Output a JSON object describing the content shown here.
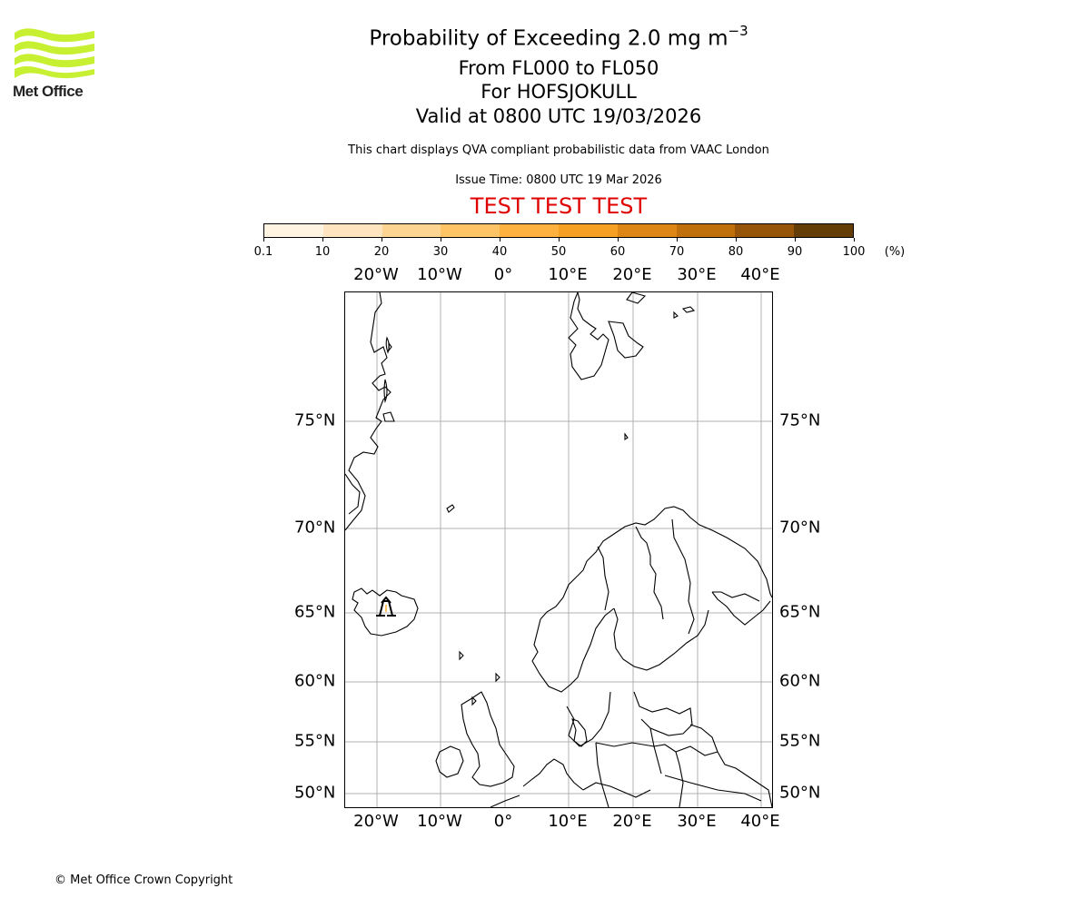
{
  "logo": {
    "text": "Met Office",
    "wave_color": "#c8f032"
  },
  "title": {
    "line1_prefix": "Probability of Exceeding 2.0 mg m",
    "line1_superscript": "−3",
    "line2": "From FL000 to FL050",
    "line3": "For HOFSJOKULL",
    "line4": "Valid at 0800 UTC 19/03/2026"
  },
  "subtitle": {
    "description": "This chart displays QVA compliant probabilistic data from VAAC London",
    "issue_time": "Issue Time: 0800 UTC 19 Mar 2026",
    "test_banner": "TEST TEST TEST",
    "test_color": "#e00000"
  },
  "colorbar": {
    "unit": "(%)",
    "ticks": [
      "0.1",
      "10",
      "20",
      "30",
      "40",
      "50",
      "60",
      "70",
      "80",
      "90",
      "100"
    ],
    "colors": [
      "#fff4e2",
      "#fee5c0",
      "#fed493",
      "#fec466",
      "#fdb23f",
      "#f5a023",
      "#de8615",
      "#c0700a",
      "#975509",
      "#643c05"
    ]
  },
  "map": {
    "lon_labels": [
      "20°W",
      "10°W",
      "0°",
      "10°E",
      "20°E",
      "30°E",
      "40°E"
    ],
    "lat_labels": [
      "75°N",
      "70°N",
      "65°N",
      "60°N",
      "55°N",
      "50°N"
    ],
    "volcano_marker": "volcano-icon",
    "volcano_name": "HOFSJOKULL"
  },
  "footer": {
    "copyright": "© Met Office Crown Copyright"
  },
  "chart_data": {
    "type": "map",
    "title": "Probability of Exceeding 2.0 mg m−3 From FL000 to FL050 For HOFSJOKULL Valid at 0800 UTC 19/03/2026",
    "colorbar_bins": [
      0.1,
      10,
      20,
      30,
      40,
      50,
      60,
      70,
      80,
      90,
      100
    ],
    "colorbar_unit": "%",
    "lon_ticks": [
      -20,
      -10,
      0,
      10,
      20,
      30,
      40
    ],
    "lat_ticks": [
      75,
      70,
      65,
      60,
      55,
      50
    ],
    "extent": {
      "lon": [
        -25,
        42
      ],
      "lat": [
        49,
        82
      ]
    },
    "grid": true,
    "volcano": {
      "name": "HOFSJOKULL",
      "lat": 64.8,
      "lon": -18.8
    },
    "probability_regions": []
  }
}
